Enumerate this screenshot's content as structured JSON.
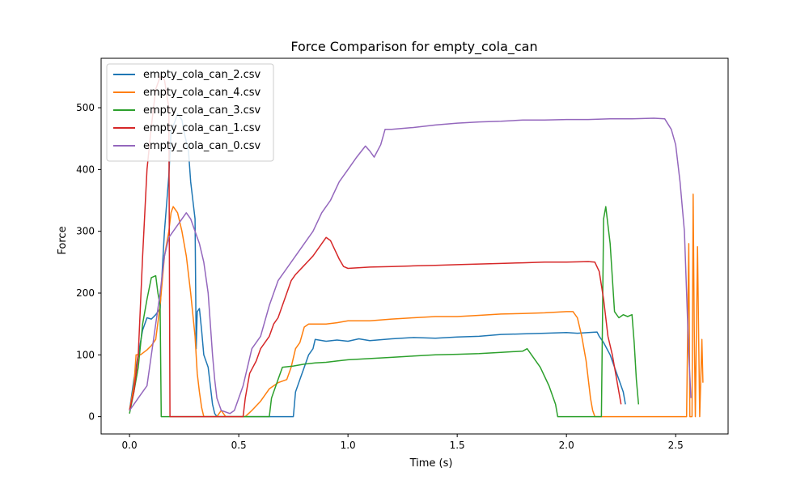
{
  "chart_data": {
    "type": "line",
    "title": "Force Comparison for empty_cola_can",
    "xlabel": "Time (s)",
    "ylabel": "Force",
    "xlim": [
      -0.13,
      2.74
    ],
    "ylim": [
      -28,
      580
    ],
    "xticks": [
      0.0,
      0.5,
      1.0,
      1.5,
      2.0,
      2.5
    ],
    "xtick_labels": [
      "0.0",
      "0.5",
      "1.0",
      "1.5",
      "2.0",
      "2.5"
    ],
    "yticks": [
      0,
      100,
      200,
      300,
      400,
      500
    ],
    "ytick_labels": [
      "0",
      "100",
      "200",
      "300",
      "400",
      "500"
    ],
    "grid": false,
    "legend_position": "upper-left",
    "series": [
      {
        "name": "empty_cola_can_2.csv",
        "color": "#1f77b4",
        "points": [
          [
            0.0,
            10
          ],
          [
            0.02,
            60
          ],
          [
            0.04,
            100
          ],
          [
            0.06,
            140
          ],
          [
            0.08,
            160
          ],
          [
            0.1,
            158
          ],
          [
            0.12,
            165
          ],
          [
            0.14,
            175
          ],
          [
            0.16,
            300
          ],
          [
            0.18,
            390
          ],
          [
            0.19,
            460
          ],
          [
            0.2,
            470
          ],
          [
            0.22,
            490
          ],
          [
            0.24,
            480
          ],
          [
            0.25,
            460
          ],
          [
            0.27,
            430
          ],
          [
            0.28,
            380
          ],
          [
            0.3,
            320
          ],
          [
            0.305,
            110
          ],
          [
            0.31,
            170
          ],
          [
            0.32,
            175
          ],
          [
            0.33,
            140
          ],
          [
            0.34,
            100
          ],
          [
            0.36,
            80
          ],
          [
            0.37,
            50
          ],
          [
            0.38,
            20
          ],
          [
            0.39,
            5
          ],
          [
            0.4,
            0
          ],
          [
            0.5,
            0
          ],
          [
            0.6,
            0
          ],
          [
            0.68,
            0
          ],
          [
            0.7,
            0
          ],
          [
            0.74,
            0
          ],
          [
            0.75,
            0
          ],
          [
            0.76,
            40
          ],
          [
            0.78,
            60
          ],
          [
            0.8,
            80
          ],
          [
            0.82,
            100
          ],
          [
            0.84,
            110
          ],
          [
            0.85,
            125
          ],
          [
            0.9,
            122
          ],
          [
            0.95,
            124
          ],
          [
            1.0,
            122
          ],
          [
            1.05,
            126
          ],
          [
            1.1,
            123
          ],
          [
            1.2,
            126
          ],
          [
            1.3,
            128
          ],
          [
            1.4,
            127
          ],
          [
            1.5,
            129
          ],
          [
            1.6,
            130
          ],
          [
            1.7,
            133
          ],
          [
            1.8,
            134
          ],
          [
            1.9,
            135
          ],
          [
            2.0,
            136
          ],
          [
            2.05,
            135
          ],
          [
            2.1,
            136
          ],
          [
            2.14,
            137
          ],
          [
            2.15,
            130
          ],
          [
            2.17,
            120
          ],
          [
            2.2,
            100
          ],
          [
            2.22,
            80
          ],
          [
            2.24,
            60
          ],
          [
            2.26,
            40
          ],
          [
            2.27,
            20
          ]
        ]
      },
      {
        "name": "empty_cola_can_4.csv",
        "color": "#ff7f0e",
        "points": [
          [
            0.0,
            10
          ],
          [
            0.02,
            50
          ],
          [
            0.03,
            100
          ],
          [
            0.05,
            100
          ],
          [
            0.08,
            108
          ],
          [
            0.1,
            115
          ],
          [
            0.12,
            125
          ],
          [
            0.14,
            180
          ],
          [
            0.16,
            260
          ],
          [
            0.18,
            300
          ],
          [
            0.19,
            330
          ],
          [
            0.2,
            340
          ],
          [
            0.22,
            330
          ],
          [
            0.24,
            300
          ],
          [
            0.26,
            260
          ],
          [
            0.28,
            200
          ],
          [
            0.3,
            130
          ],
          [
            0.31,
            70
          ],
          [
            0.32,
            40
          ],
          [
            0.33,
            15
          ],
          [
            0.34,
            0
          ],
          [
            0.4,
            0
          ],
          [
            0.42,
            10
          ],
          [
            0.44,
            0
          ],
          [
            0.5,
            0
          ],
          [
            0.53,
            0
          ],
          [
            0.56,
            10
          ],
          [
            0.6,
            25
          ],
          [
            0.64,
            45
          ],
          [
            0.68,
            55
          ],
          [
            0.72,
            60
          ],
          [
            0.74,
            80
          ],
          [
            0.76,
            110
          ],
          [
            0.78,
            120
          ],
          [
            0.8,
            145
          ],
          [
            0.82,
            150
          ],
          [
            0.9,
            150
          ],
          [
            0.95,
            152
          ],
          [
            1.0,
            155
          ],
          [
            1.1,
            155
          ],
          [
            1.2,
            158
          ],
          [
            1.3,
            160
          ],
          [
            1.4,
            162
          ],
          [
            1.5,
            162
          ],
          [
            1.6,
            164
          ],
          [
            1.7,
            166
          ],
          [
            1.8,
            167
          ],
          [
            1.9,
            168
          ],
          [
            2.0,
            170
          ],
          [
            2.03,
            170
          ],
          [
            2.05,
            160
          ],
          [
            2.07,
            130
          ],
          [
            2.09,
            90
          ],
          [
            2.1,
            60
          ],
          [
            2.11,
            30
          ],
          [
            2.12,
            10
          ],
          [
            2.13,
            0
          ],
          [
            2.3,
            0
          ],
          [
            2.5,
            0
          ],
          [
            2.55,
            0
          ],
          [
            2.56,
            280
          ],
          [
            2.565,
            0
          ],
          [
            2.575,
            0
          ],
          [
            2.58,
            360
          ],
          [
            2.585,
            150
          ],
          [
            2.59,
            0
          ],
          [
            2.6,
            275
          ],
          [
            2.61,
            0
          ],
          [
            2.62,
            125
          ],
          [
            2.625,
            55
          ]
        ]
      },
      {
        "name": "empty_cola_can_3.csv",
        "color": "#2ca02c",
        "points": [
          [
            0.0,
            5
          ],
          [
            0.02,
            40
          ],
          [
            0.04,
            80
          ],
          [
            0.06,
            150
          ],
          [
            0.08,
            190
          ],
          [
            0.1,
            225
          ],
          [
            0.12,
            228
          ],
          [
            0.13,
            200
          ],
          [
            0.14,
            180
          ],
          [
            0.145,
            0
          ],
          [
            0.2,
            0
          ],
          [
            0.3,
            0
          ],
          [
            0.4,
            0
          ],
          [
            0.5,
            0
          ],
          [
            0.6,
            0
          ],
          [
            0.64,
            0
          ],
          [
            0.65,
            30
          ],
          [
            0.68,
            60
          ],
          [
            0.7,
            80
          ],
          [
            0.75,
            82
          ],
          [
            0.8,
            85
          ],
          [
            0.85,
            87
          ],
          [
            0.9,
            88
          ],
          [
            0.95,
            90
          ],
          [
            1.0,
            92
          ],
          [
            1.1,
            94
          ],
          [
            1.2,
            96
          ],
          [
            1.3,
            98
          ],
          [
            1.4,
            100
          ],
          [
            1.5,
            101
          ],
          [
            1.6,
            102
          ],
          [
            1.7,
            104
          ],
          [
            1.8,
            106
          ],
          [
            1.82,
            110
          ],
          [
            1.84,
            100
          ],
          [
            1.88,
            80
          ],
          [
            1.92,
            50
          ],
          [
            1.95,
            20
          ],
          [
            1.96,
            0
          ],
          [
            2.0,
            0
          ],
          [
            2.1,
            0
          ],
          [
            2.15,
            0
          ],
          [
            2.16,
            0
          ],
          [
            2.17,
            320
          ],
          [
            2.18,
            340
          ],
          [
            2.19,
            310
          ],
          [
            2.2,
            280
          ],
          [
            2.22,
            170
          ],
          [
            2.24,
            160
          ],
          [
            2.26,
            165
          ],
          [
            2.28,
            162
          ],
          [
            2.3,
            165
          ],
          [
            2.31,
            120
          ],
          [
            2.32,
            60
          ],
          [
            2.33,
            20
          ]
        ]
      },
      {
        "name": "empty_cola_can_1.csv",
        "color": "#d62728",
        "points": [
          [
            0.0,
            10
          ],
          [
            0.02,
            40
          ],
          [
            0.04,
            100
          ],
          [
            0.06,
            260
          ],
          [
            0.08,
            400
          ],
          [
            0.1,
            470
          ],
          [
            0.12,
            530
          ],
          [
            0.14,
            550
          ],
          [
            0.16,
            545
          ],
          [
            0.18,
            500
          ],
          [
            0.185,
            0
          ],
          [
            0.2,
            0
          ],
          [
            0.3,
            0
          ],
          [
            0.4,
            0
          ],
          [
            0.5,
            0
          ],
          [
            0.52,
            0
          ],
          [
            0.53,
            30
          ],
          [
            0.55,
            70
          ],
          [
            0.58,
            90
          ],
          [
            0.6,
            110
          ],
          [
            0.62,
            120
          ],
          [
            0.64,
            130
          ],
          [
            0.66,
            150
          ],
          [
            0.68,
            160
          ],
          [
            0.7,
            180
          ],
          [
            0.72,
            200
          ],
          [
            0.74,
            220
          ],
          [
            0.76,
            230
          ],
          [
            0.8,
            245
          ],
          [
            0.84,
            260
          ],
          [
            0.88,
            280
          ],
          [
            0.9,
            290
          ],
          [
            0.92,
            285
          ],
          [
            0.94,
            270
          ],
          [
            0.96,
            255
          ],
          [
            0.98,
            243
          ],
          [
            1.0,
            240
          ],
          [
            1.1,
            242
          ],
          [
            1.2,
            243
          ],
          [
            1.3,
            244
          ],
          [
            1.4,
            245
          ],
          [
            1.5,
            246
          ],
          [
            1.6,
            247
          ],
          [
            1.7,
            248
          ],
          [
            1.8,
            249
          ],
          [
            1.9,
            250
          ],
          [
            2.0,
            250
          ],
          [
            2.1,
            251
          ],
          [
            2.13,
            250
          ],
          [
            2.15,
            235
          ],
          [
            2.17,
            190
          ],
          [
            2.19,
            130
          ],
          [
            2.21,
            100
          ],
          [
            2.23,
            60
          ],
          [
            2.24,
            40
          ],
          [
            2.25,
            20
          ]
        ]
      },
      {
        "name": "empty_cola_can_0.csv",
        "color": "#9467bd",
        "points": [
          [
            0.0,
            10
          ],
          [
            0.02,
            20
          ],
          [
            0.04,
            30
          ],
          [
            0.06,
            40
          ],
          [
            0.08,
            50
          ],
          [
            0.1,
            100
          ],
          [
            0.12,
            150
          ],
          [
            0.14,
            200
          ],
          [
            0.16,
            260
          ],
          [
            0.18,
            290
          ],
          [
            0.2,
            300
          ],
          [
            0.22,
            310
          ],
          [
            0.24,
            320
          ],
          [
            0.26,
            330
          ],
          [
            0.28,
            320
          ],
          [
            0.3,
            300
          ],
          [
            0.32,
            280
          ],
          [
            0.34,
            250
          ],
          [
            0.36,
            200
          ],
          [
            0.37,
            150
          ],
          [
            0.38,
            100
          ],
          [
            0.39,
            60
          ],
          [
            0.4,
            30
          ],
          [
            0.42,
            10
          ],
          [
            0.46,
            5
          ],
          [
            0.48,
            10
          ],
          [
            0.5,
            30
          ],
          [
            0.52,
            50
          ],
          [
            0.54,
            80
          ],
          [
            0.56,
            110
          ],
          [
            0.6,
            130
          ],
          [
            0.64,
            180
          ],
          [
            0.66,
            200
          ],
          [
            0.68,
            220
          ],
          [
            0.7,
            230
          ],
          [
            0.72,
            240
          ],
          [
            0.76,
            260
          ],
          [
            0.8,
            280
          ],
          [
            0.84,
            300
          ],
          [
            0.88,
            330
          ],
          [
            0.92,
            350
          ],
          [
            0.96,
            380
          ],
          [
            1.0,
            400
          ],
          [
            1.04,
            420
          ],
          [
            1.08,
            438
          ],
          [
            1.1,
            430
          ],
          [
            1.12,
            420
          ],
          [
            1.15,
            440
          ],
          [
            1.17,
            465
          ],
          [
            1.2,
            465
          ],
          [
            1.3,
            468
          ],
          [
            1.4,
            472
          ],
          [
            1.5,
            475
          ],
          [
            1.6,
            477
          ],
          [
            1.7,
            478
          ],
          [
            1.8,
            480
          ],
          [
            1.9,
            480
          ],
          [
            2.0,
            481
          ],
          [
            2.1,
            481
          ],
          [
            2.2,
            482
          ],
          [
            2.3,
            482
          ],
          [
            2.4,
            483
          ],
          [
            2.45,
            482
          ],
          [
            2.48,
            465
          ],
          [
            2.5,
            440
          ],
          [
            2.52,
            380
          ],
          [
            2.54,
            300
          ],
          [
            2.55,
            200
          ],
          [
            2.56,
            100
          ],
          [
            2.57,
            30
          ]
        ]
      }
    ]
  }
}
